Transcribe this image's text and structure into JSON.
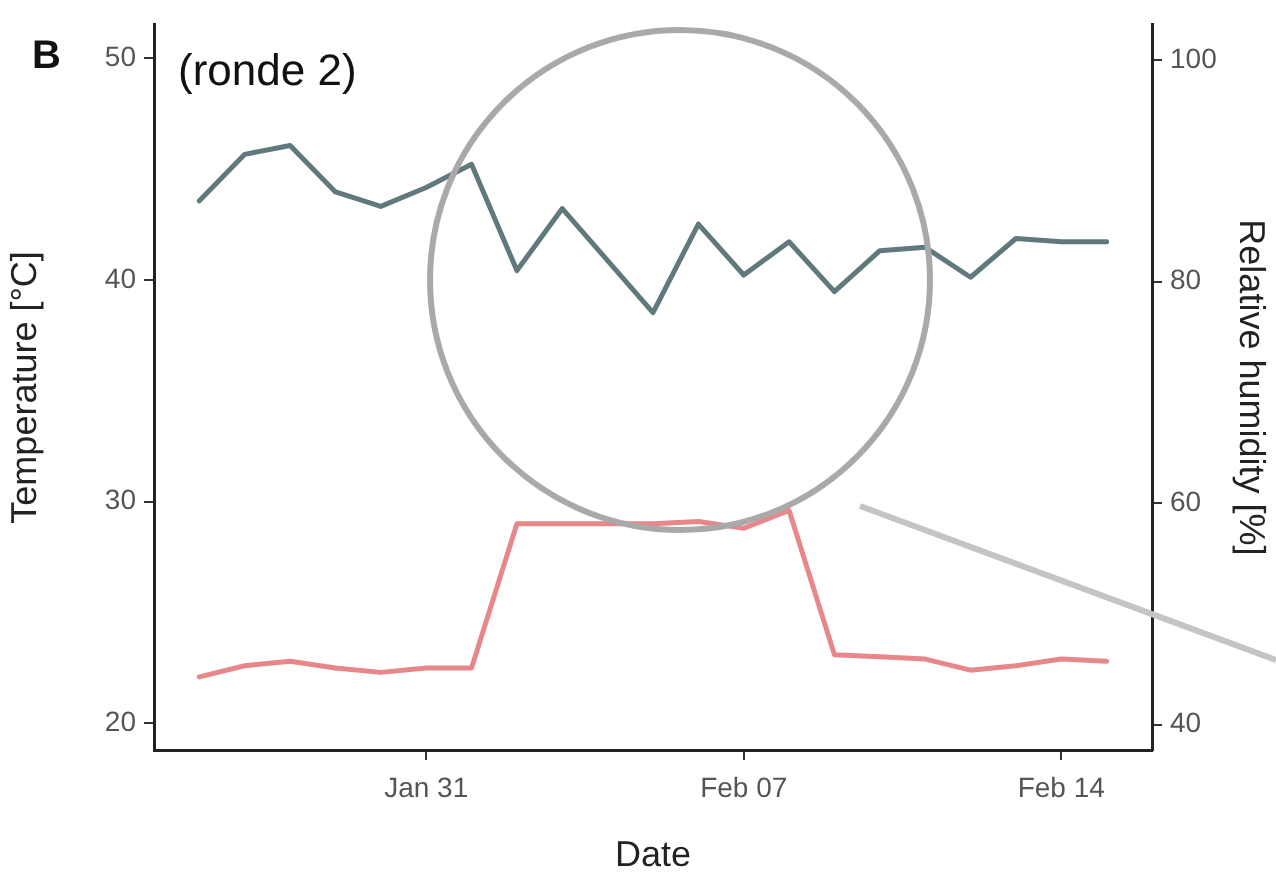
{
  "chart_data": {
    "type": "line",
    "xlabel": "Date",
    "ylabel": "Temperature [°C]",
    "y2label": "Relative humidity [%]",
    "annotations": [
      "B",
      "(ronde 2)"
    ],
    "x": [
      "--01-26",
      "--01-27",
      "--01-28",
      "--01-29",
      "--01-30",
      "--01-31",
      "--02-01",
      "--02-02",
      "--02-03",
      "--02-04",
      "--02-05",
      "--02-06",
      "--02-07",
      "--02-08",
      "--02-09",
      "--02-10",
      "--02-11",
      "--02-12",
      "--02-13",
      "--02-14",
      "--02-15"
    ],
    "series": [
      {
        "color": "#5f797c",
        "axis": "y2",
        "values": [
          87.3,
          91.5,
          92.3,
          88.1,
          86.8,
          88.5,
          90.6,
          81.0,
          86.6,
          81.9,
          77.2,
          85.2,
          80.6,
          83.6,
          79.1,
          82.8,
          83.1,
          80.4,
          83.9,
          83.6,
          83.6
        ]
      },
      {
        "color": "#e8878a",
        "values": [
          22.1,
          22.6,
          22.8,
          22.5,
          22.3,
          22.5,
          22.5,
          29.0,
          29.0,
          29.0,
          29.0,
          29.1,
          28.8,
          29.6,
          23.1,
          23.0,
          22.9,
          22.4,
          22.6,
          22.9,
          22.8
        ]
      }
    ],
    "xlim": [
      "--01-25",
      "--02-16"
    ],
    "xticks": [
      {
        "value": "--01-31",
        "label": "Jan 31"
      },
      {
        "value": "--02-07",
        "label": "Feb 07"
      },
      {
        "value": "--02-14",
        "label": "Feb 14"
      }
    ],
    "ylim": [
      18.8,
      51.5
    ],
    "yticks": [
      20,
      30,
      40,
      50
    ],
    "y2lim": [
      37.7,
      103.2
    ],
    "y2ticks": [
      40,
      60,
      80,
      100
    ],
    "grid": false,
    "legend": false,
    "line_style": "solid"
  }
}
